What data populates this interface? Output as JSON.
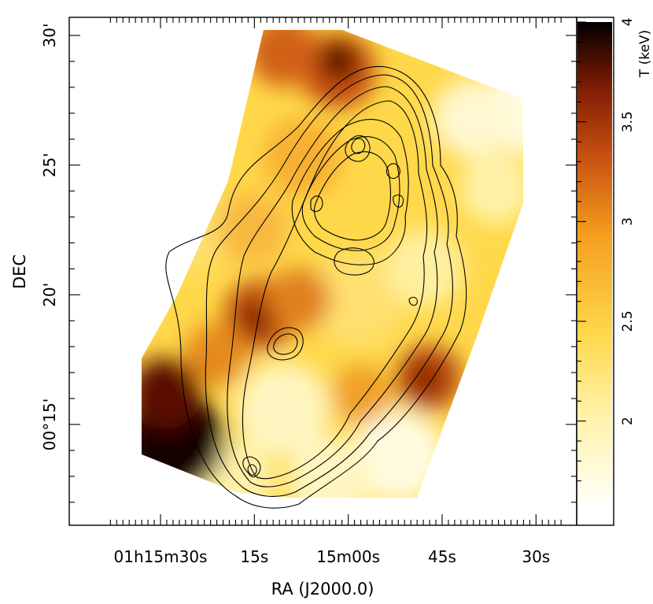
{
  "chart_data": {
    "type": "heatmap",
    "xlabel": "RA (J2000.0)",
    "ylabel": "DEC",
    "colorbar_label": "T (keV)",
    "x_ticks": [
      {
        "label": "01h15m30s",
        "ra_sec": 930
      },
      {
        "label": "15s",
        "ra_sec": 915
      },
      {
        "label": "15m00s",
        "ra_sec": 900
      },
      {
        "label": "45s",
        "ra_sec": 885
      },
      {
        "label": "30s",
        "ra_sec": 870
      }
    ],
    "y_ticks": [
      {
        "label": "00°15'",
        "dec_arcmin": 15
      },
      {
        "label": "20'",
        "dec_arcmin": 20
      },
      {
        "label": "25'",
        "dec_arcmin": 25
      },
      {
        "label": "30'",
        "dec_arcmin": 30
      }
    ],
    "colorbar_ticks": [
      {
        "label": "2",
        "value": 2
      },
      {
        "label": "2.5",
        "value": 2.5
      },
      {
        "label": "3",
        "value": 3
      },
      {
        "label": "3.5",
        "value": 3.5
      },
      {
        "label": "4",
        "value": 4
      }
    ],
    "colorbar_range": [
      1.6,
      4.0
    ],
    "colormap": [
      "#fffff5",
      "#fff2a8",
      "#ffd84a",
      "#f5a020",
      "#c85010",
      "#7a1a05",
      "#000000"
    ],
    "hot_spots": [
      {
        "ra_sec": 926,
        "dec_arcmin": 14.3,
        "T": 4.0
      },
      {
        "ra_sec": 904,
        "dec_arcmin": 28.8,
        "T": 3.7
      },
      {
        "ra_sec": 912,
        "dec_arcmin": 18.8,
        "T": 3.3
      },
      {
        "ra_sec": 888,
        "dec_arcmin": 16.8,
        "T": 3.3
      },
      {
        "ra_sec": 912,
        "dec_arcmin": 28.6,
        "T": 3.2
      }
    ],
    "contour_peaks": [
      {
        "ra_sec": 900,
        "dec_arcmin": 25.7
      },
      {
        "ra_sec": 896,
        "dec_arcmin": 24.8
      },
      {
        "ra_sec": 915,
        "dec_arcmin": 13.2
      }
    ]
  }
}
